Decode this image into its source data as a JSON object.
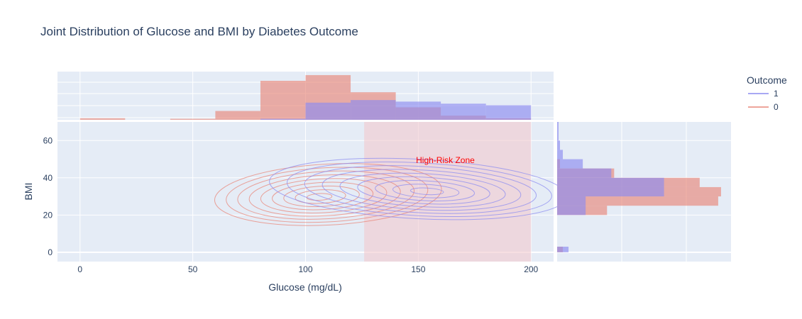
{
  "chart_data": {
    "type": "contour",
    "title": "Joint Distribution of Glucose and BMI by Diabetes Outcome",
    "xlabel": "Glucose (mg/dL)",
    "ylabel": "BMI",
    "xlim": [
      -10,
      210
    ],
    "ylim": [
      -5,
      70
    ],
    "x_ticks": [
      0,
      50,
      100,
      150,
      200
    ],
    "y_ticks": [
      0,
      20,
      40,
      60
    ],
    "grid": true,
    "legend": {
      "title": "Outcome",
      "placement": "right",
      "entries": [
        "1",
        "0"
      ]
    },
    "colors": {
      "outcome_1": "#8c8cf0",
      "outcome_0": "#e8877a",
      "zone": "#f2c9cf",
      "annotation": "#ff0000",
      "plot_bg": "#e5ecf6"
    },
    "annotation": {
      "text": "High-Risk Zone",
      "x": 162,
      "y": 48
    },
    "highrisk_zone": {
      "x0": 126,
      "x1": 200,
      "y0": -5,
      "y1": 70
    },
    "series": [
      {
        "name": "1",
        "density_center": {
          "glucose": 150,
          "bmi": 34
        },
        "glucose_histogram": {
          "bins": [
            [
              80,
              100
            ],
            [
              100,
              120
            ],
            [
              120,
              140
            ],
            [
              140,
              160
            ],
            [
              160,
              180
            ],
            [
              180,
              200
            ]
          ],
          "counts": [
            2,
            33,
            38,
            35,
            31,
            28
          ]
        },
        "bmi_histogram": {
          "bins": [
            [
              0,
              3
            ],
            [
              20,
              25
            ],
            [
              25,
              30
            ],
            [
              30,
              35
            ],
            [
              35,
              40
            ],
            [
              40,
              45
            ],
            [
              45,
              50
            ],
            [
              50,
              55
            ],
            [
              55,
              60
            ],
            [
              60,
              70
            ]
          ],
          "counts": [
            8,
            20,
            20,
            75,
            75,
            38,
            18,
            4,
            2,
            1
          ]
        }
      },
      {
        "name": "0",
        "density_center": {
          "glucose": 110,
          "bmi": 31
        },
        "glucose_histogram": {
          "bins": [
            [
              0,
              20
            ],
            [
              40,
              60
            ],
            [
              60,
              80
            ],
            [
              80,
              100
            ],
            [
              100,
              120
            ],
            [
              120,
              140
            ],
            [
              140,
              160
            ],
            [
              160,
              180
            ],
            [
              180,
              200
            ]
          ],
          "counts": [
            3,
            2,
            17,
            75,
            86,
            53,
            24,
            8,
            3
          ]
        },
        "bmi_histogram": {
          "bins": [
            [
              0,
              3
            ],
            [
              20,
              25
            ],
            [
              25,
              30
            ],
            [
              30,
              35
            ],
            [
              35,
              40
            ],
            [
              40,
              45
            ],
            [
              45,
              50
            ]
          ],
          "counts": [
            4,
            35,
            113,
            115,
            100,
            40,
            2
          ]
        }
      }
    ]
  }
}
